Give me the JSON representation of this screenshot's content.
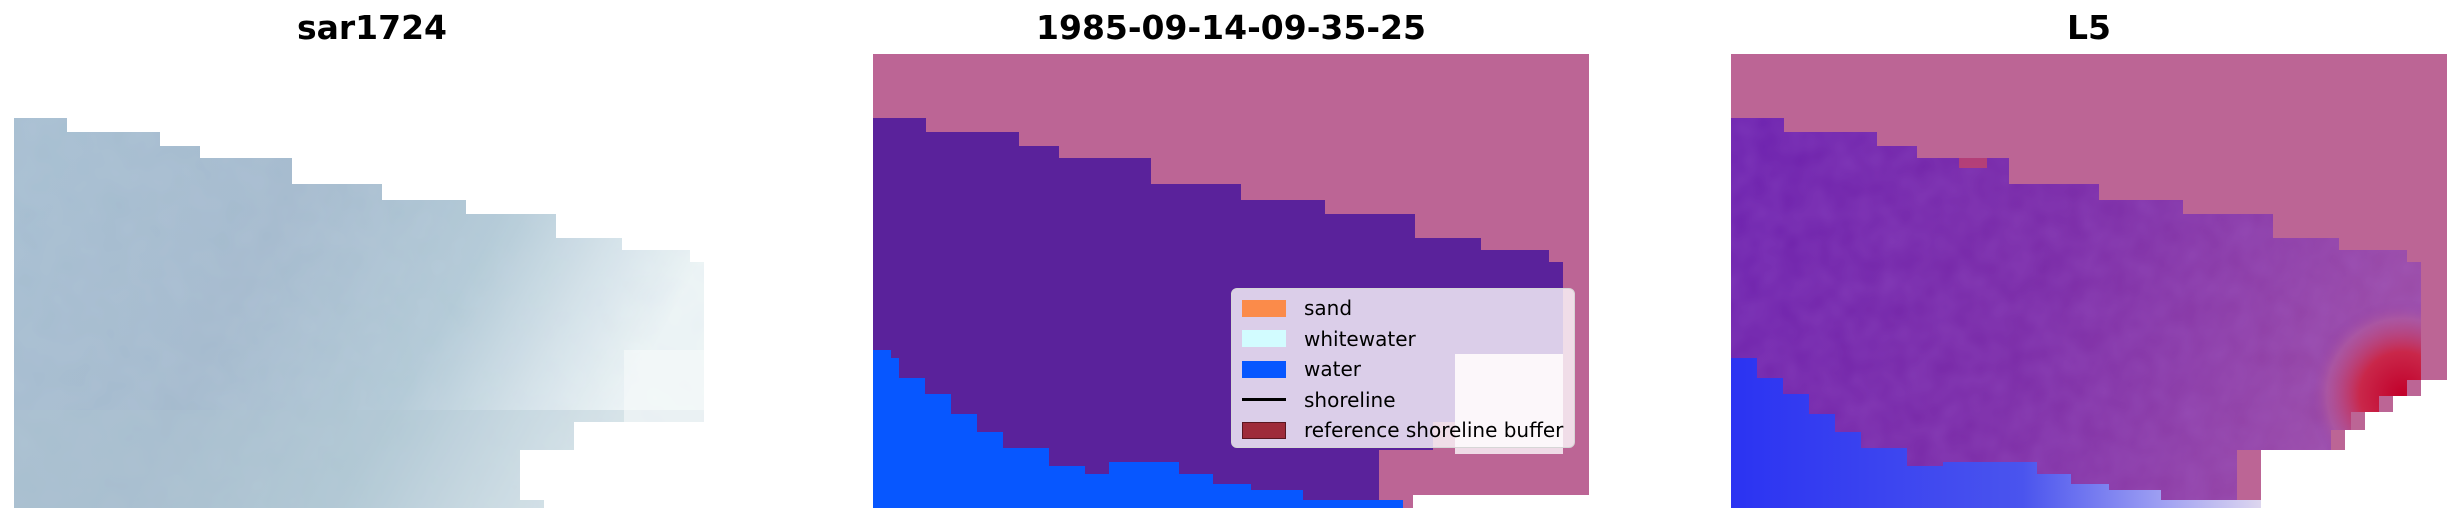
{
  "panels": [
    {
      "title": "sar1724"
    },
    {
      "title": "1985-09-14-09-35-25"
    },
    {
      "title": "L5"
    }
  ],
  "legend": {
    "items": [
      {
        "label": "sand",
        "color": "#fb8b4a",
        "kind": "patch"
      },
      {
        "label": "whitewater",
        "color": "#d2fcff",
        "kind": "patch"
      },
      {
        "label": "water",
        "color": "#0757ff",
        "kind": "patch"
      },
      {
        "label": "shoreline",
        "color": "#000000",
        "kind": "line"
      },
      {
        "label": "reference shoreline buffer",
        "color": "#9e2b3a",
        "kind": "patch"
      }
    ]
  },
  "colors": {
    "land_overlay": "#bc6595",
    "water_class": "#5a229b",
    "sea_blue": "#0757ff",
    "buffer_light": "#efdbe7"
  }
}
